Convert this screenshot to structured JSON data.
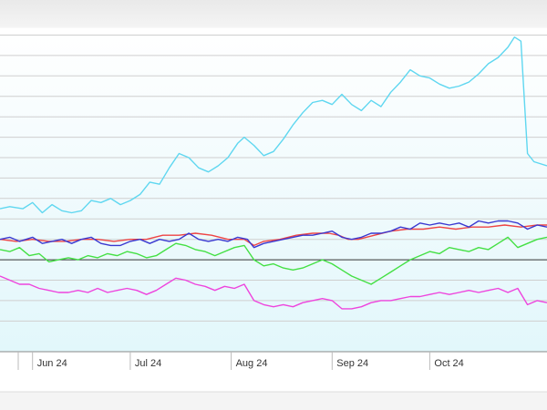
{
  "chart_data": {
    "type": "line",
    "title": "",
    "xlabel": "",
    "ylabel": "",
    "grid": true,
    "legend": "none",
    "x_ticks": [
      "Jun 24",
      "Jul 24",
      "Aug 24",
      "Sep 24",
      "Oct 24"
    ],
    "x_range": [
      "2024-05-22",
      "2024-11-06"
    ],
    "y_range": [
      -4.5,
      11.2
    ],
    "baseline": 0,
    "y_gridlines": [
      -3,
      -2,
      -1,
      1,
      2,
      3,
      4,
      5,
      6,
      7,
      8,
      9,
      10,
      11
    ],
    "series": [
      {
        "color": "#5fd7f0",
        "points": [
          [
            "2024-05-22",
            2.5
          ],
          [
            "2024-05-25",
            2.6
          ],
          [
            "2024-05-29",
            2.5
          ],
          [
            "2024-06-01",
            2.8
          ],
          [
            "2024-06-04",
            2.3
          ],
          [
            "2024-06-07",
            2.7
          ],
          [
            "2024-06-10",
            2.4
          ],
          [
            "2024-06-13",
            2.3
          ],
          [
            "2024-06-16",
            2.4
          ],
          [
            "2024-06-19",
            2.9
          ],
          [
            "2024-06-22",
            2.8
          ],
          [
            "2024-06-25",
            3.0
          ],
          [
            "2024-06-28",
            2.7
          ],
          [
            "2024-07-01",
            2.9
          ],
          [
            "2024-07-04",
            3.2
          ],
          [
            "2024-07-07",
            3.8
          ],
          [
            "2024-07-10",
            3.7
          ],
          [
            "2024-07-13",
            4.5
          ],
          [
            "2024-07-16",
            5.2
          ],
          [
            "2024-07-19",
            5.0
          ],
          [
            "2024-07-22",
            4.5
          ],
          [
            "2024-07-25",
            4.3
          ],
          [
            "2024-07-28",
            4.6
          ],
          [
            "2024-07-31",
            5.0
          ],
          [
            "2024-08-03",
            5.7
          ],
          [
            "2024-08-05",
            6.0
          ],
          [
            "2024-08-08",
            5.6
          ],
          [
            "2024-08-11",
            5.1
          ],
          [
            "2024-08-14",
            5.3
          ],
          [
            "2024-08-17",
            5.9
          ],
          [
            "2024-08-20",
            6.6
          ],
          [
            "2024-08-23",
            7.2
          ],
          [
            "2024-08-26",
            7.7
          ],
          [
            "2024-08-29",
            7.8
          ],
          [
            "2024-09-01",
            7.6
          ],
          [
            "2024-09-04",
            8.1
          ],
          [
            "2024-09-07",
            7.6
          ],
          [
            "2024-09-10",
            7.3
          ],
          [
            "2024-09-13",
            7.8
          ],
          [
            "2024-09-16",
            7.5
          ],
          [
            "2024-09-19",
            8.2
          ],
          [
            "2024-09-22",
            8.7
          ],
          [
            "2024-09-25",
            9.3
          ],
          [
            "2024-09-28",
            9.0
          ],
          [
            "2024-10-01",
            8.9
          ],
          [
            "2024-10-04",
            8.6
          ],
          [
            "2024-10-07",
            8.4
          ],
          [
            "2024-10-10",
            8.5
          ],
          [
            "2024-10-13",
            8.7
          ],
          [
            "2024-10-16",
            9.1
          ],
          [
            "2024-10-19",
            9.6
          ],
          [
            "2024-10-22",
            9.9
          ],
          [
            "2024-10-25",
            10.4
          ],
          [
            "2024-10-27",
            10.9
          ],
          [
            "2024-10-29",
            10.7
          ],
          [
            "2024-10-31",
            5.2
          ],
          [
            "2024-11-02",
            4.8
          ],
          [
            "2024-11-06",
            4.6
          ]
        ]
      },
      {
        "color": "#ee4444",
        "points": [
          [
            "2024-05-22",
            1.0
          ],
          [
            "2024-05-27",
            0.9
          ],
          [
            "2024-06-01",
            1.0
          ],
          [
            "2024-06-06",
            0.9
          ],
          [
            "2024-06-11",
            0.9
          ],
          [
            "2024-06-16",
            1.0
          ],
          [
            "2024-06-21",
            1.0
          ],
          [
            "2024-06-26",
            0.9
          ],
          [
            "2024-07-01",
            1.0
          ],
          [
            "2024-07-06",
            1.0
          ],
          [
            "2024-07-11",
            1.2
          ],
          [
            "2024-07-16",
            1.2
          ],
          [
            "2024-07-21",
            1.3
          ],
          [
            "2024-07-26",
            1.2
          ],
          [
            "2024-07-31",
            1.0
          ],
          [
            "2024-08-05",
            1.0
          ],
          [
            "2024-08-08",
            0.7
          ],
          [
            "2024-08-11",
            0.9
          ],
          [
            "2024-08-16",
            1.0
          ],
          [
            "2024-08-21",
            1.2
          ],
          [
            "2024-08-26",
            1.3
          ],
          [
            "2024-08-31",
            1.3
          ],
          [
            "2024-09-03",
            1.2
          ],
          [
            "2024-09-06",
            1.0
          ],
          [
            "2024-09-09",
            1.0
          ],
          [
            "2024-09-14",
            1.2
          ],
          [
            "2024-09-19",
            1.4
          ],
          [
            "2024-09-24",
            1.5
          ],
          [
            "2024-09-29",
            1.5
          ],
          [
            "2024-10-04",
            1.6
          ],
          [
            "2024-10-09",
            1.5
          ],
          [
            "2024-10-14",
            1.6
          ],
          [
            "2024-10-19",
            1.6
          ],
          [
            "2024-10-24",
            1.7
          ],
          [
            "2024-10-29",
            1.6
          ],
          [
            "2024-11-03",
            1.7
          ],
          [
            "2024-11-06",
            1.7
          ]
        ]
      },
      {
        "color": "#3a38d0",
        "points": [
          [
            "2024-05-22",
            1.0
          ],
          [
            "2024-05-25",
            1.1
          ],
          [
            "2024-05-28",
            0.9
          ],
          [
            "2024-06-01",
            1.1
          ],
          [
            "2024-06-04",
            0.8
          ],
          [
            "2024-06-07",
            0.9
          ],
          [
            "2024-06-10",
            1.0
          ],
          [
            "2024-06-13",
            0.8
          ],
          [
            "2024-06-16",
            1.0
          ],
          [
            "2024-06-19",
            1.1
          ],
          [
            "2024-06-22",
            0.8
          ],
          [
            "2024-06-25",
            0.7
          ],
          [
            "2024-06-28",
            0.7
          ],
          [
            "2024-07-01",
            0.9
          ],
          [
            "2024-07-04",
            1.0
          ],
          [
            "2024-07-07",
            0.8
          ],
          [
            "2024-07-10",
            1.0
          ],
          [
            "2024-07-13",
            0.9
          ],
          [
            "2024-07-16",
            1.0
          ],
          [
            "2024-07-19",
            1.3
          ],
          [
            "2024-07-22",
            1.0
          ],
          [
            "2024-07-25",
            0.9
          ],
          [
            "2024-07-28",
            1.0
          ],
          [
            "2024-07-31",
            0.9
          ],
          [
            "2024-08-03",
            1.1
          ],
          [
            "2024-08-06",
            1.0
          ],
          [
            "2024-08-08",
            0.6
          ],
          [
            "2024-08-11",
            0.8
          ],
          [
            "2024-08-14",
            0.9
          ],
          [
            "2024-08-17",
            1.0
          ],
          [
            "2024-08-20",
            1.1
          ],
          [
            "2024-08-23",
            1.2
          ],
          [
            "2024-08-26",
            1.2
          ],
          [
            "2024-08-29",
            1.3
          ],
          [
            "2024-09-01",
            1.4
          ],
          [
            "2024-09-04",
            1.1
          ],
          [
            "2024-09-07",
            1.0
          ],
          [
            "2024-09-10",
            1.1
          ],
          [
            "2024-09-13",
            1.3
          ],
          [
            "2024-09-16",
            1.3
          ],
          [
            "2024-09-19",
            1.4
          ],
          [
            "2024-09-22",
            1.6
          ],
          [
            "2024-09-25",
            1.5
          ],
          [
            "2024-09-28",
            1.8
          ],
          [
            "2024-10-01",
            1.7
          ],
          [
            "2024-10-04",
            1.8
          ],
          [
            "2024-10-07",
            1.7
          ],
          [
            "2024-10-10",
            1.8
          ],
          [
            "2024-10-13",
            1.6
          ],
          [
            "2024-10-16",
            1.9
          ],
          [
            "2024-10-19",
            1.8
          ],
          [
            "2024-10-22",
            1.9
          ],
          [
            "2024-10-25",
            1.9
          ],
          [
            "2024-10-28",
            1.8
          ],
          [
            "2024-10-31",
            1.5
          ],
          [
            "2024-11-03",
            1.7
          ],
          [
            "2024-11-06",
            1.6
          ]
        ]
      },
      {
        "color": "#44e044",
        "points": [
          [
            "2024-05-22",
            0.5
          ],
          [
            "2024-05-25",
            0.4
          ],
          [
            "2024-05-28",
            0.6
          ],
          [
            "2024-05-31",
            0.2
          ],
          [
            "2024-06-03",
            0.3
          ],
          [
            "2024-06-06",
            -0.1
          ],
          [
            "2024-06-09",
            0.0
          ],
          [
            "2024-06-12",
            0.1
          ],
          [
            "2024-06-15",
            0.0
          ],
          [
            "2024-06-18",
            0.2
          ],
          [
            "2024-06-21",
            0.1
          ],
          [
            "2024-06-24",
            0.3
          ],
          [
            "2024-06-27",
            0.2
          ],
          [
            "2024-06-30",
            0.4
          ],
          [
            "2024-07-03",
            0.3
          ],
          [
            "2024-07-06",
            0.1
          ],
          [
            "2024-07-09",
            0.2
          ],
          [
            "2024-07-12",
            0.5
          ],
          [
            "2024-07-15",
            0.8
          ],
          [
            "2024-07-18",
            0.7
          ],
          [
            "2024-07-21",
            0.5
          ],
          [
            "2024-07-24",
            0.4
          ],
          [
            "2024-07-27",
            0.2
          ],
          [
            "2024-07-30",
            0.4
          ],
          [
            "2024-08-02",
            0.6
          ],
          [
            "2024-08-05",
            0.7
          ],
          [
            "2024-08-08",
            0.0
          ],
          [
            "2024-08-11",
            -0.3
          ],
          [
            "2024-08-14",
            -0.2
          ],
          [
            "2024-08-17",
            -0.4
          ],
          [
            "2024-08-20",
            -0.5
          ],
          [
            "2024-08-23",
            -0.4
          ],
          [
            "2024-08-26",
            -0.2
          ],
          [
            "2024-08-29",
            0.0
          ],
          [
            "2024-09-01",
            -0.2
          ],
          [
            "2024-09-04",
            -0.5
          ],
          [
            "2024-09-07",
            -0.8
          ],
          [
            "2024-09-10",
            -1.0
          ],
          [
            "2024-09-13",
            -1.2
          ],
          [
            "2024-09-16",
            -0.9
          ],
          [
            "2024-09-19",
            -0.6
          ],
          [
            "2024-09-22",
            -0.3
          ],
          [
            "2024-09-25",
            0.0
          ],
          [
            "2024-09-28",
            0.2
          ],
          [
            "2024-10-01",
            0.4
          ],
          [
            "2024-10-04",
            0.3
          ],
          [
            "2024-10-07",
            0.6
          ],
          [
            "2024-10-10",
            0.5
          ],
          [
            "2024-10-13",
            0.4
          ],
          [
            "2024-10-16",
            0.6
          ],
          [
            "2024-10-19",
            0.5
          ],
          [
            "2024-10-22",
            0.8
          ],
          [
            "2024-10-25",
            1.1
          ],
          [
            "2024-10-28",
            0.6
          ],
          [
            "2024-10-31",
            0.8
          ],
          [
            "2024-11-03",
            1.0
          ],
          [
            "2024-11-06",
            1.1
          ]
        ]
      },
      {
        "color": "#ee44dd",
        "points": [
          [
            "2024-05-22",
            -0.8
          ],
          [
            "2024-05-25",
            -1.0
          ],
          [
            "2024-05-28",
            -1.2
          ],
          [
            "2024-05-31",
            -1.2
          ],
          [
            "2024-06-03",
            -1.4
          ],
          [
            "2024-06-06",
            -1.5
          ],
          [
            "2024-06-09",
            -1.6
          ],
          [
            "2024-06-12",
            -1.6
          ],
          [
            "2024-06-15",
            -1.5
          ],
          [
            "2024-06-18",
            -1.6
          ],
          [
            "2024-06-21",
            -1.4
          ],
          [
            "2024-06-24",
            -1.6
          ],
          [
            "2024-06-27",
            -1.5
          ],
          [
            "2024-06-30",
            -1.4
          ],
          [
            "2024-07-03",
            -1.5
          ],
          [
            "2024-07-06",
            -1.7
          ],
          [
            "2024-07-09",
            -1.5
          ],
          [
            "2024-07-12",
            -1.2
          ],
          [
            "2024-07-15",
            -0.9
          ],
          [
            "2024-07-18",
            -1.0
          ],
          [
            "2024-07-21",
            -1.2
          ],
          [
            "2024-07-24",
            -1.3
          ],
          [
            "2024-07-27",
            -1.5
          ],
          [
            "2024-07-30",
            -1.3
          ],
          [
            "2024-08-02",
            -1.4
          ],
          [
            "2024-08-05",
            -1.2
          ],
          [
            "2024-08-08",
            -2.0
          ],
          [
            "2024-08-11",
            -2.2
          ],
          [
            "2024-08-14",
            -2.3
          ],
          [
            "2024-08-17",
            -2.2
          ],
          [
            "2024-08-20",
            -2.3
          ],
          [
            "2024-08-23",
            -2.1
          ],
          [
            "2024-08-26",
            -2.0
          ],
          [
            "2024-08-29",
            -1.9
          ],
          [
            "2024-09-01",
            -2.0
          ],
          [
            "2024-09-04",
            -2.4
          ],
          [
            "2024-09-07",
            -2.4
          ],
          [
            "2024-09-10",
            -2.3
          ],
          [
            "2024-09-13",
            -2.1
          ],
          [
            "2024-09-16",
            -2.0
          ],
          [
            "2024-09-19",
            -2.0
          ],
          [
            "2024-09-22",
            -1.9
          ],
          [
            "2024-09-25",
            -1.8
          ],
          [
            "2024-09-28",
            -1.8
          ],
          [
            "2024-10-01",
            -1.7
          ],
          [
            "2024-10-04",
            -1.6
          ],
          [
            "2024-10-07",
            -1.7
          ],
          [
            "2024-10-10",
            -1.6
          ],
          [
            "2024-10-13",
            -1.5
          ],
          [
            "2024-10-16",
            -1.6
          ],
          [
            "2024-10-19",
            -1.5
          ],
          [
            "2024-10-22",
            -1.4
          ],
          [
            "2024-10-25",
            -1.6
          ],
          [
            "2024-10-28",
            -1.4
          ],
          [
            "2024-10-31",
            -2.2
          ],
          [
            "2024-11-03",
            -2.0
          ],
          [
            "2024-11-06",
            -2.1
          ]
        ]
      }
    ]
  }
}
